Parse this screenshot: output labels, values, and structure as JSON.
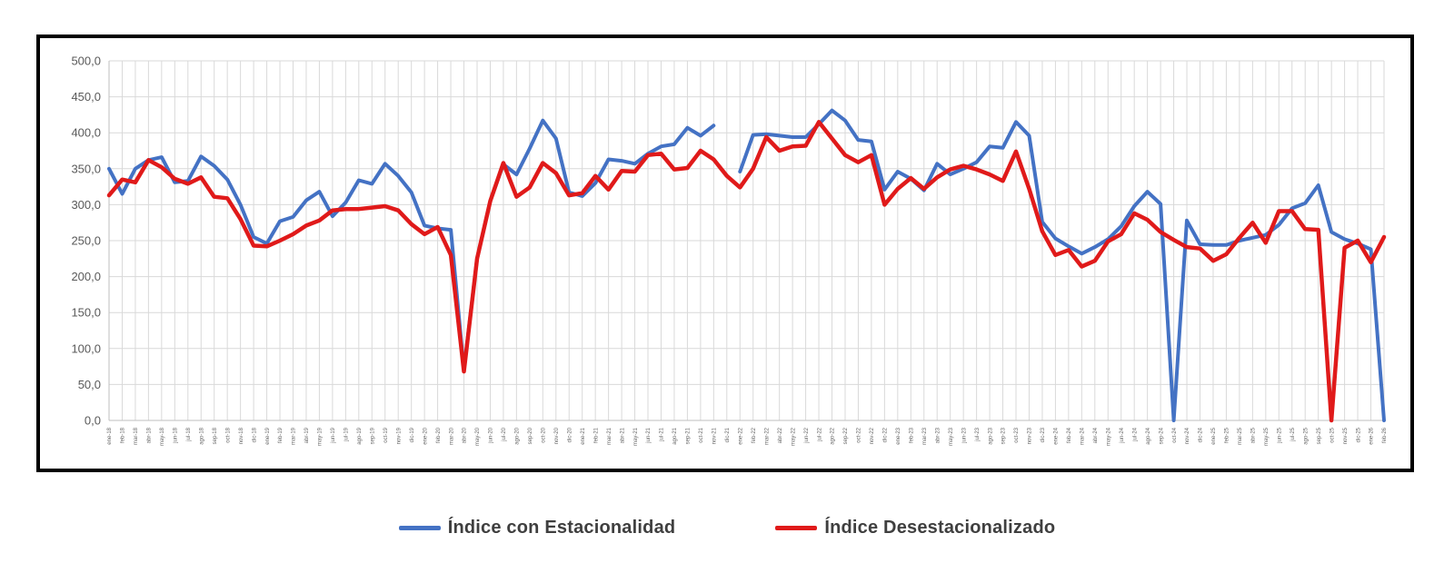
{
  "chart_data": {
    "type": "line",
    "title": "",
    "xlabel": "",
    "ylabel": "",
    "ylim": [
      0,
      500
    ],
    "ytick_step": 50,
    "y_tick_labels": [
      "0,0",
      "50,0",
      "100,0",
      "150,0",
      "200,0",
      "250,0",
      "300,0",
      "350,0",
      "400,0",
      "450,0",
      "500,0"
    ],
    "grid": true,
    "legend_position": "bottom-center",
    "categories": [
      "ene-18",
      "feb-18",
      "mar-18",
      "abr-18",
      "may-18",
      "jun-18",
      "jul-18",
      "ago-18",
      "sep-18",
      "oct-18",
      "nov-18",
      "dic-18",
      "ene-19",
      "feb-19",
      "mar-19",
      "abr-19",
      "may-19",
      "jun-19",
      "jul-19",
      "ago-19",
      "sep-19",
      "oct-19",
      "nov-19",
      "dic-19",
      "ene-20",
      "feb-20",
      "mar-20",
      "abr-20",
      "may-20",
      "jun-20",
      "jul-20",
      "ago-20",
      "sep-20",
      "oct-20",
      "nov-20",
      "dic-20",
      "ene-21",
      "feb-21",
      "mar-21",
      "abr-21",
      "may-21",
      "jun-21",
      "jul-21",
      "ago-21",
      "sep-21",
      "oct-21",
      "nov-21",
      "dic-21",
      "ene-22",
      "feb-22",
      "mar-22",
      "abr-22",
      "may-22",
      "jun-22",
      "jul-22",
      "ago-22",
      "sep-22",
      "oct-22",
      "nov-22",
      "dic-22",
      "ene-23",
      "feb-23",
      "mar-23",
      "abr-23",
      "may-23",
      "jun-23",
      "jul-23",
      "ago-23",
      "sep-23",
      "oct-23",
      "nov-23",
      "dic-23",
      "ene-24",
      "feb-24",
      "mar-24",
      "abr-24",
      "may-24",
      "jun-24",
      "jul-24",
      "ago-24",
      "sep-24",
      "oct-24",
      "nov-24",
      "dic-24",
      "ene-25",
      "feb-25",
      "mar-25",
      "abr-25",
      "may-25",
      "jun-25",
      "jul-25",
      "ago-25",
      "sep-25",
      "oct-25",
      "nov-25",
      "dic-25",
      "ene-26",
      "feb-26"
    ],
    "series": [
      {
        "name": "Índice con Estacionalidad",
        "color": "#4472C4",
        "values": [
          350,
          315,
          350,
          362,
          366,
          331,
          333,
          367,
          354,
          335,
          300,
          255,
          246,
          277,
          283,
          306,
          318,
          284,
          303,
          334,
          329,
          357,
          340,
          317,
          271,
          267,
          265,
          70,
          225,
          305,
          356,
          342,
          378,
          417,
          392,
          317,
          312,
          330,
          363,
          361,
          357,
          371,
          381,
          384,
          407,
          396,
          410,
          null,
          346,
          397,
          398,
          396,
          394,
          394,
          412,
          431,
          417,
          390,
          388,
          321,
          346,
          336,
          320,
          357,
          342,
          350,
          359,
          381,
          379,
          415,
          396,
          276,
          253,
          242,
          232,
          241,
          252,
          270,
          298,
          318,
          301,
          0,
          278,
          245,
          244,
          244,
          250,
          254,
          258,
          272,
          295,
          302,
          327,
          262,
          252,
          246,
          238,
          0
        ]
      },
      {
        "name": "Índice Desestacionalizado",
        "color": "#E01A1A",
        "values": [
          313,
          335,
          331,
          362,
          352,
          336,
          329,
          338,
          311,
          309,
          280,
          243,
          242,
          250,
          259,
          271,
          278,
          292,
          294,
          294,
          296,
          298,
          292,
          273,
          259,
          269,
          230,
          68,
          225,
          305,
          358,
          311,
          324,
          358,
          344,
          313,
          316,
          340,
          321,
          347,
          346,
          369,
          371,
          349,
          351,
          375,
          363,
          340,
          324,
          350,
          394,
          375,
          381,
          382,
          415,
          392,
          369,
          359,
          369,
          300,
          322,
          337,
          322,
          338,
          349,
          354,
          349,
          342,
          333,
          374,
          322,
          263,
          230,
          237,
          214,
          222,
          249,
          259,
          288,
          279,
          262,
          251,
          241,
          239,
          222,
          231,
          254,
          275,
          247,
          291,
          291,
          266,
          265,
          0,
          240,
          250,
          220,
          255
        ]
      }
    ]
  }
}
